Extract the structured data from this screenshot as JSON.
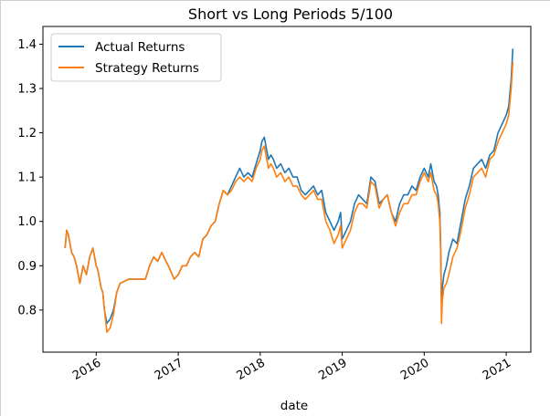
{
  "chart_data": {
    "type": "line",
    "title": "Short vs Long Periods 5/100",
    "xlabel": "date",
    "ylabel": "",
    "xlim": [
      2015.35,
      2021.3
    ],
    "ylim": [
      0.705,
      1.44
    ],
    "x_tick_labels": [
      "2016",
      "2017",
      "2018",
      "2019",
      "2020",
      "2021"
    ],
    "y_tick_labels": [
      "0.8",
      "0.9",
      "1.0",
      "1.1",
      "1.2",
      "1.3",
      "1.4"
    ],
    "legend_position": "top-left",
    "grid": false,
    "series": [
      {
        "name": "Actual Returns",
        "color": "#1f77b4",
        "x": [
          2015.62,
          2015.64,
          2015.66,
          2015.68,
          2015.7,
          2015.73,
          2015.76,
          2015.8,
          2015.84,
          2015.88,
          2015.92,
          2015.96,
          2016.0,
          2016.02,
          2016.04,
          2016.06,
          2016.08,
          2016.1,
          2016.13,
          2016.17,
          2016.21,
          2016.25,
          2016.29,
          2016.4,
          2016.5,
          2016.6,
          2016.65,
          2016.7,
          2016.75,
          2016.8,
          2016.85,
          2016.88,
          2016.95,
          2017.0,
          2017.05,
          2017.1,
          2017.15,
          2017.2,
          2017.25,
          2017.3,
          2017.35,
          2017.4,
          2017.45,
          2017.5,
          2017.55,
          2017.6,
          2017.65,
          2017.7,
          2017.75,
          2017.8,
          2017.85,
          2017.9,
          2017.95,
          2018.0,
          2018.02,
          2018.05,
          2018.08,
          2018.1,
          2018.13,
          2018.16,
          2018.2,
          2018.25,
          2018.3,
          2018.35,
          2018.4,
          2018.45,
          2018.5,
          2018.55,
          2018.6,
          2018.65,
          2018.7,
          2018.75,
          2018.8,
          2018.85,
          2018.9,
          2018.95,
          2018.98,
          2019.0,
          2019.05,
          2019.1,
          2019.15,
          2019.2,
          2019.25,
          2019.3,
          2019.35,
          2019.4,
          2019.45,
          2019.5,
          2019.55,
          2019.6,
          2019.65,
          2019.7,
          2019.75,
          2019.8,
          2019.85,
          2019.9,
          2019.95,
          2020.0,
          2020.05,
          2020.08,
          2020.1,
          2020.12,
          2020.15,
          2020.17,
          2020.19,
          2020.2,
          2020.21,
          2020.22,
          2020.24,
          2020.27,
          2020.3,
          2020.35,
          2020.4,
          2020.45,
          2020.5,
          2020.55,
          2020.6,
          2020.65,
          2020.7,
          2020.75,
          2020.8,
          2020.85,
          2020.9,
          2020.95,
          2021.0,
          2021.03,
          2021.06,
          2021.08
        ],
        "y": [
          0.94,
          0.98,
          0.97,
          0.95,
          0.93,
          0.92,
          0.9,
          0.86,
          0.9,
          0.88,
          0.92,
          0.94,
          0.9,
          0.89,
          0.87,
          0.85,
          0.84,
          0.8,
          0.77,
          0.78,
          0.8,
          0.84,
          0.86,
          0.87,
          0.87,
          0.87,
          0.9,
          0.92,
          0.91,
          0.93,
          0.91,
          0.9,
          0.87,
          0.88,
          0.9,
          0.9,
          0.92,
          0.93,
          0.92,
          0.96,
          0.97,
          0.99,
          1.0,
          1.04,
          1.07,
          1.06,
          1.08,
          1.1,
          1.12,
          1.1,
          1.11,
          1.1,
          1.13,
          1.16,
          1.18,
          1.19,
          1.16,
          1.14,
          1.15,
          1.14,
          1.12,
          1.13,
          1.11,
          1.12,
          1.1,
          1.1,
          1.07,
          1.06,
          1.07,
          1.08,
          1.06,
          1.07,
          1.02,
          1.0,
          0.98,
          1.0,
          1.02,
          0.96,
          0.98,
          1.0,
          1.04,
          1.06,
          1.05,
          1.04,
          1.1,
          1.09,
          1.04,
          1.05,
          1.06,
          1.02,
          1.0,
          1.04,
          1.06,
          1.06,
          1.08,
          1.07,
          1.1,
          1.12,
          1.1,
          1.13,
          1.11,
          1.09,
          1.08,
          1.06,
          1.02,
          0.95,
          0.82,
          0.85,
          0.88,
          0.9,
          0.93,
          0.96,
          0.95,
          1.0,
          1.05,
          1.08,
          1.12,
          1.13,
          1.14,
          1.12,
          1.15,
          1.16,
          1.2,
          1.22,
          1.24,
          1.26,
          1.32,
          1.39
        ]
      },
      {
        "name": "Strategy Returns",
        "color": "#ff7f0e",
        "x": [
          2015.62,
          2015.64,
          2015.66,
          2015.68,
          2015.7,
          2015.73,
          2015.76,
          2015.8,
          2015.84,
          2015.88,
          2015.92,
          2015.96,
          2016.0,
          2016.02,
          2016.04,
          2016.06,
          2016.08,
          2016.1,
          2016.13,
          2016.17,
          2016.21,
          2016.25,
          2016.29,
          2016.4,
          2016.5,
          2016.6,
          2016.65,
          2016.7,
          2016.75,
          2016.8,
          2016.85,
          2016.88,
          2016.95,
          2017.0,
          2017.05,
          2017.1,
          2017.15,
          2017.2,
          2017.25,
          2017.3,
          2017.35,
          2017.4,
          2017.45,
          2017.5,
          2017.55,
          2017.6,
          2017.65,
          2017.7,
          2017.75,
          2017.8,
          2017.85,
          2017.9,
          2017.95,
          2018.0,
          2018.02,
          2018.05,
          2018.08,
          2018.1,
          2018.13,
          2018.16,
          2018.2,
          2018.25,
          2018.3,
          2018.35,
          2018.4,
          2018.45,
          2018.5,
          2018.55,
          2018.6,
          2018.65,
          2018.7,
          2018.75,
          2018.8,
          2018.85,
          2018.9,
          2018.95,
          2018.98,
          2019.0,
          2019.05,
          2019.1,
          2019.15,
          2019.2,
          2019.25,
          2019.3,
          2019.35,
          2019.4,
          2019.45,
          2019.5,
          2019.55,
          2019.6,
          2019.65,
          2019.7,
          2019.75,
          2019.8,
          2019.85,
          2019.9,
          2019.95,
          2020.0,
          2020.05,
          2020.08,
          2020.1,
          2020.12,
          2020.15,
          2020.17,
          2020.19,
          2020.2,
          2020.21,
          2020.22,
          2020.24,
          2020.27,
          2020.3,
          2020.35,
          2020.4,
          2020.45,
          2020.5,
          2020.55,
          2020.6,
          2020.65,
          2020.7,
          2020.75,
          2020.8,
          2020.85,
          2020.9,
          2020.95,
          2021.0,
          2021.03,
          2021.06,
          2021.08
        ],
        "y": [
          0.94,
          0.98,
          0.97,
          0.95,
          0.93,
          0.92,
          0.9,
          0.86,
          0.9,
          0.88,
          0.92,
          0.94,
          0.9,
          0.89,
          0.87,
          0.85,
          0.84,
          0.8,
          0.75,
          0.76,
          0.79,
          0.84,
          0.86,
          0.87,
          0.87,
          0.87,
          0.9,
          0.92,
          0.91,
          0.93,
          0.91,
          0.9,
          0.87,
          0.88,
          0.9,
          0.9,
          0.92,
          0.93,
          0.92,
          0.96,
          0.97,
          0.99,
          1.0,
          1.04,
          1.07,
          1.06,
          1.07,
          1.09,
          1.1,
          1.09,
          1.1,
          1.09,
          1.12,
          1.14,
          1.16,
          1.17,
          1.14,
          1.12,
          1.13,
          1.12,
          1.1,
          1.11,
          1.09,
          1.1,
          1.08,
          1.08,
          1.06,
          1.05,
          1.06,
          1.07,
          1.05,
          1.05,
          1.0,
          0.98,
          0.95,
          0.97,
          0.99,
          0.94,
          0.96,
          0.98,
          1.02,
          1.04,
          1.04,
          1.03,
          1.09,
          1.08,
          1.03,
          1.05,
          1.06,
          1.02,
          0.99,
          1.02,
          1.04,
          1.04,
          1.06,
          1.06,
          1.09,
          1.11,
          1.09,
          1.11,
          1.09,
          1.07,
          1.06,
          1.04,
          1.0,
          0.93,
          0.77,
          0.82,
          0.85,
          0.86,
          0.88,
          0.92,
          0.94,
          0.98,
          1.03,
          1.06,
          1.1,
          1.11,
          1.12,
          1.1,
          1.14,
          1.15,
          1.18,
          1.2,
          1.22,
          1.24,
          1.3,
          1.36
        ]
      }
    ]
  }
}
